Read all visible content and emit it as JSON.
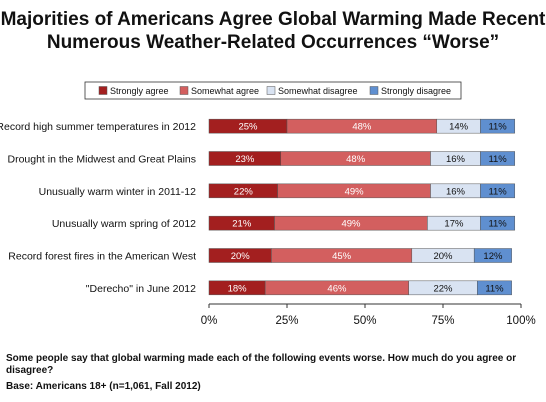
{
  "title_lines": [
    "Majorities of Americans Agree Global Warming Made Recent",
    "Numerous Weather-Related Occurrences “Worse”"
  ],
  "chart_data": {
    "type": "bar",
    "orientation": "horizontal",
    "stacked": true,
    "categories": [
      "Record high summer temperatures in 2012",
      "Drought in the Midwest and Great Plains",
      "Unusually warm winter in 2011-12",
      "Unusually warm spring of 2012",
      "Record forest fires in the American West",
      "\"Derecho\" in June 2012"
    ],
    "series": [
      {
        "name": "Strongly agree",
        "color": "#a31f1f",
        "values": [
          25,
          23,
          22,
          21,
          20,
          18
        ]
      },
      {
        "name": "Somewhat agree",
        "color": "#d35f5f",
        "values": [
          48,
          48,
          49,
          49,
          45,
          46
        ]
      },
      {
        "name": "Somewhat disagree",
        "color": "#d9e3f2",
        "values": [
          14,
          16,
          16,
          17,
          20,
          22
        ]
      },
      {
        "name": "Strongly disagree",
        "color": "#5f8fd0",
        "values": [
          11,
          11,
          11,
          11,
          12,
          11
        ]
      }
    ],
    "value_suffix": "%",
    "xlim": [
      0,
      100
    ],
    "xticks": [
      "0%",
      "25%",
      "50%",
      "75%",
      "100%"
    ],
    "grid": false,
    "legend_position": "top"
  },
  "footnote": {
    "question": "Some people say that global warming made each of the following events worse. How much do you agree or disagree?",
    "base": "Base: Americans 18+ (n=1,061, Fall 2012)"
  }
}
